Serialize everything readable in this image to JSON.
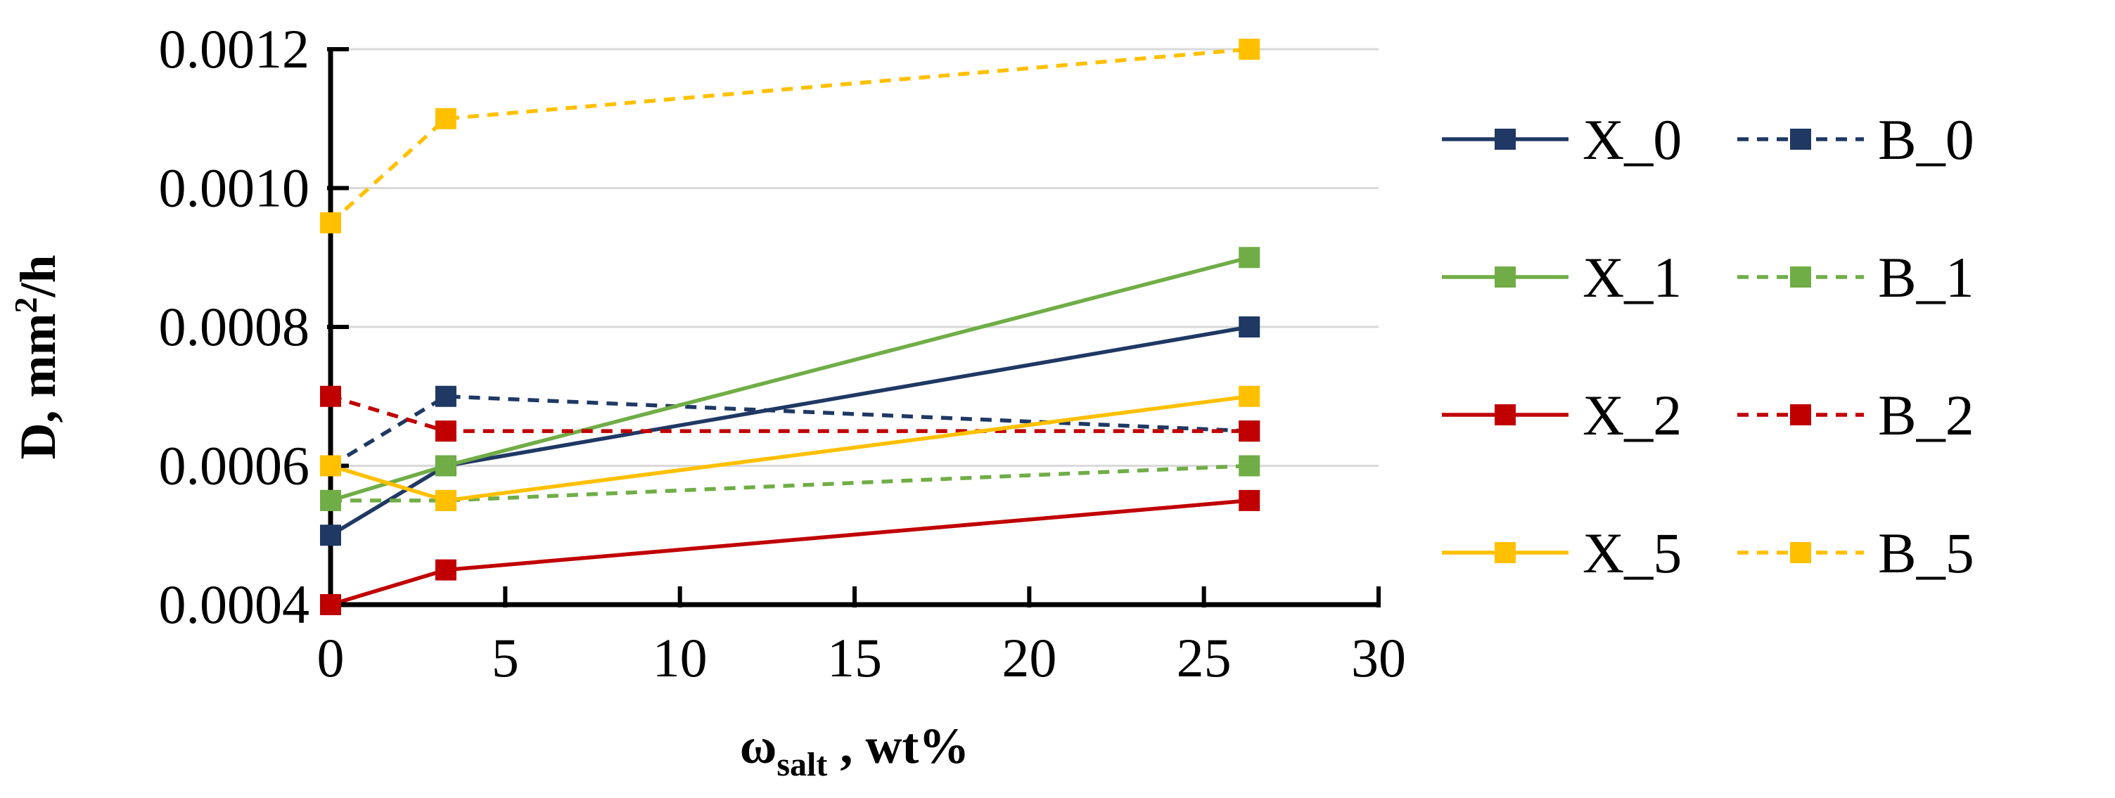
{
  "chart_data": {
    "type": "line",
    "title": "",
    "xlabel": {
      "main": "ω",
      "sub": "salt",
      "suffix": " , wt%"
    },
    "ylabel": {
      "main": "D, mm",
      "sup": "2",
      "suffix": "/h"
    },
    "xlim": [
      0,
      30
    ],
    "ylim": [
      0.0004,
      0.0012
    ],
    "x_ticks": [
      0,
      5,
      10,
      15,
      20,
      25,
      30
    ],
    "y_ticks": [
      0.0004,
      0.0006,
      0.0008,
      0.001,
      0.0012
    ],
    "y_tick_labels": [
      "0.0004",
      "0.0006",
      "0.0008",
      "0.0010",
      "0.0012"
    ],
    "x_tick_labels": [
      "0",
      "5",
      "10",
      "15",
      "20",
      "25",
      "30"
    ],
    "grid": true,
    "legend_position": "right",
    "x": [
      0,
      3.3,
      26.3
    ],
    "series": [
      {
        "name": "X_0",
        "color": "#1f3864",
        "dash": false,
        "values": [
          0.0005,
          0.0006,
          0.0008
        ]
      },
      {
        "name": "B_0",
        "color": "#1f3864",
        "dash": true,
        "values": [
          0.0006,
          0.0007,
          0.00065
        ]
      },
      {
        "name": "X_1",
        "color": "#70ad47",
        "dash": false,
        "values": [
          0.00055,
          0.0006,
          0.0009
        ]
      },
      {
        "name": "B_1",
        "color": "#70ad47",
        "dash": true,
        "values": [
          0.00055,
          0.00055,
          0.0006
        ]
      },
      {
        "name": "X_2",
        "color": "#c00000",
        "dash": false,
        "values": [
          0.0004,
          0.00045,
          0.00055
        ]
      },
      {
        "name": "B_2",
        "color": "#c00000",
        "dash": true,
        "values": [
          0.0007,
          0.00065,
          0.00065
        ]
      },
      {
        "name": "X_5",
        "color": "#ffc000",
        "dash": false,
        "values": [
          0.0006,
          0.00055,
          0.0007
        ]
      },
      {
        "name": "B_5",
        "color": "#ffc000",
        "dash": true,
        "values": [
          0.00095,
          0.0011,
          0.0012
        ]
      }
    ]
  }
}
